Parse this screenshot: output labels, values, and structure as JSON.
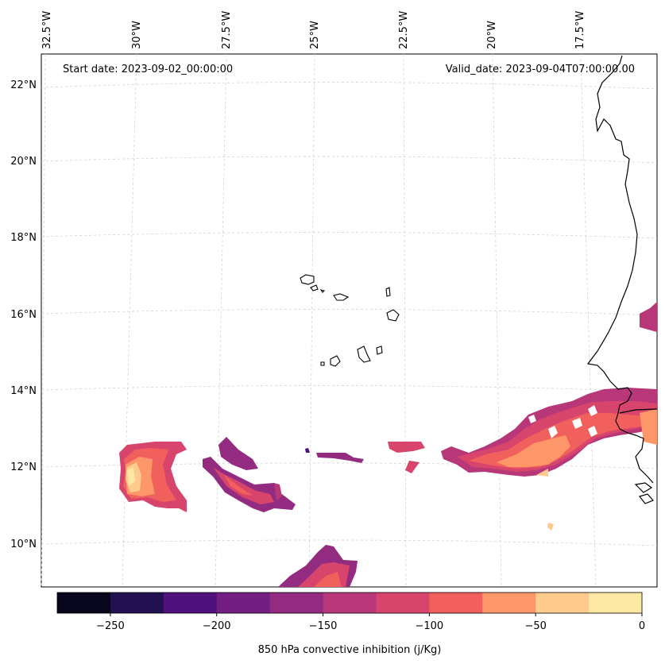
{
  "header": {
    "start_date": "Start date: 2023-09-02_00:00:00",
    "valid_date": "Valid_date: 2023-09-04T07:00:00.00"
  },
  "axes": {
    "lon_labels": [
      "32.5°W",
      "30°W",
      "27.5°W",
      "25°W",
      "22.5°W",
      "20°W",
      "17.5°W"
    ],
    "lat_labels": [
      "22°N",
      "20°N",
      "18°N",
      "16°N",
      "14°N",
      "12°N",
      "10°N"
    ],
    "grid": true,
    "grid_style": "dashed"
  },
  "colorbar": {
    "label": "850 hPa convective inhibition (j/Kg)",
    "ticks": [
      "−250",
      "−200",
      "−150",
      "−100",
      "−50",
      "0"
    ],
    "levels": [
      -275,
      -250,
      -225,
      -200,
      -175,
      -150,
      -125,
      -100,
      -75,
      -50,
      -25,
      0
    ],
    "colors": [
      "#07061c",
      "#221150",
      "#4f117b",
      "#721f81",
      "#932b80",
      "#b73779",
      "#d8456c",
      "#f1605d",
      "#fd9668",
      "#feca8d",
      "#fde8a4"
    ]
  },
  "cin_regions": [
    {
      "value": -100,
      "shape": "west-blob"
    },
    {
      "value": -150,
      "shape": "west-band"
    },
    {
      "value": -125,
      "shape": "south-blob"
    },
    {
      "value": -125,
      "shape": "east-band"
    }
  ]
}
